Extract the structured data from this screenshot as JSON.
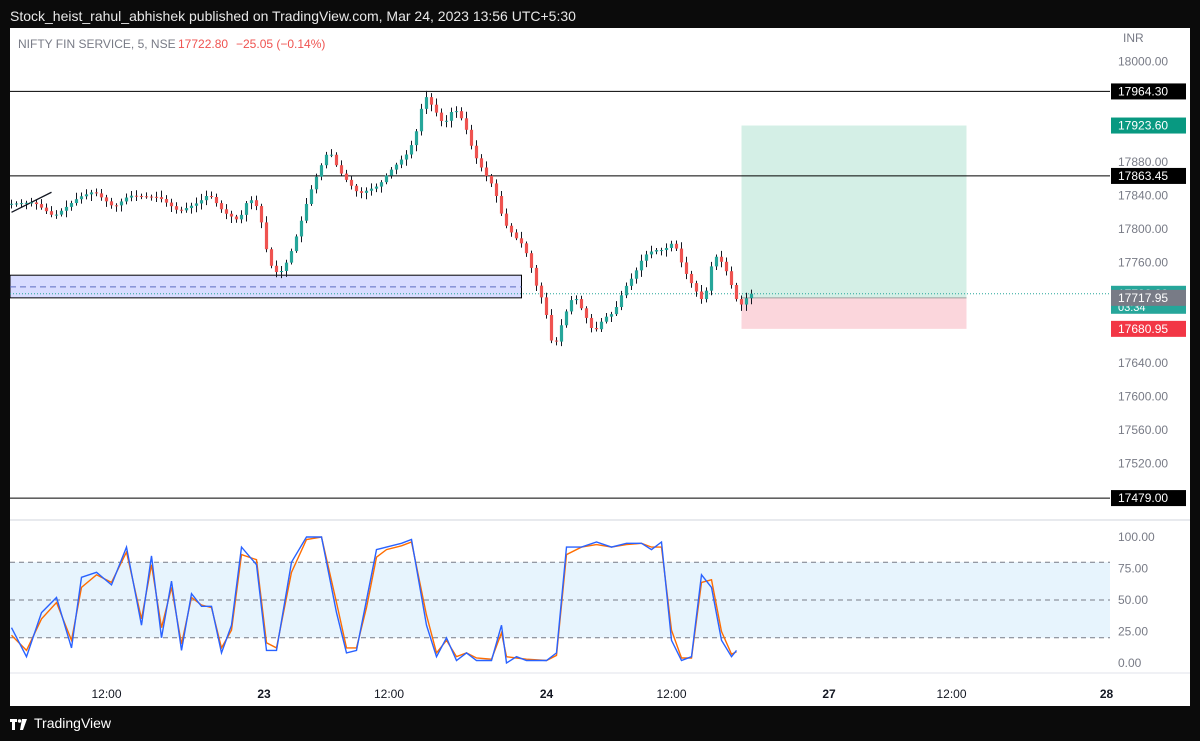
{
  "header": {
    "published_by": "Stock_heist_rahul_abhishek published on TradingView.com, Mar 24, 2023 13:56 UTC+5:30"
  },
  "legend": {
    "symbol": "NIFTY FIN SERVICE, 5, NSE",
    "last_price": "17722.80",
    "change": "−25.05 (−0.14%)"
  },
  "footer": {
    "brand": "TradingView"
  },
  "colors": {
    "up": "#26a69a",
    "down": "#ef5350",
    "k_line": "#2962ff",
    "d_line": "#ff6d00",
    "target_zone": "#d4efe6",
    "stop_zone": "#fbd6dc",
    "support_zone": "#d8dcff"
  },
  "chart_data": [
    {
      "type": "candlestick",
      "currency_label": "INR",
      "ylim": [
        17460,
        18040
      ],
      "y_ticks": [
        "18000.00",
        "17880.00",
        "17840.00",
        "17800.00",
        "17760.00",
        "17640.00",
        "17600.00",
        "17560.00",
        "17520.00"
      ],
      "x_ticks": [
        "12:00",
        "23",
        "12:00",
        "24",
        "12:00",
        "27",
        "12:00",
        "28"
      ],
      "horizontal_levels": [
        "17964.30",
        "17863.45",
        "17479.00"
      ],
      "price_labels": [
        {
          "value": "17964.30",
          "color": "#000000"
        },
        {
          "value": "17923.60",
          "color": "#089981"
        },
        {
          "value": "17863.45",
          "color": "#000000"
        },
        {
          "value": "17722.80",
          "sub": "03:34",
          "color": "#26a69a"
        },
        {
          "value": "17717.95",
          "color": "#787b86"
        },
        {
          "value": "17680.95",
          "color": "#f23645"
        },
        {
          "value": "17479.00",
          "color": "#000000"
        }
      ],
      "position": {
        "entry": 17717.95,
        "target": 17923.6,
        "stop": 17680.95
      },
      "support_zone": [
        17717.95,
        17745
      ],
      "support_mid": 17731,
      "current_price": 17722.8,
      "trendline": [
        [
          0,
          17820
        ],
        [
          8,
          17844
        ]
      ],
      "series_path": [
        [
          0,
          17830
        ],
        [
          5,
          17832
        ],
        [
          9,
          17815
        ],
        [
          14,
          17838
        ],
        [
          17,
          17845
        ],
        [
          21,
          17826
        ],
        [
          24,
          17840
        ],
        [
          30,
          17838
        ],
        [
          34,
          17821
        ],
        [
          38,
          17832
        ],
        [
          40,
          17842
        ],
        [
          43,
          17820
        ],
        [
          46,
          17810
        ],
        [
          48,
          17838
        ],
        [
          50,
          17824
        ],
        [
          52,
          17760
        ],
        [
          54,
          17745
        ],
        [
          56,
          17765
        ],
        [
          58,
          17800
        ],
        [
          60,
          17840
        ],
        [
          62,
          17870
        ],
        [
          64,
          17895
        ],
        [
          66,
          17870
        ],
        [
          68,
          17855
        ],
        [
          70,
          17842
        ],
        [
          74,
          17852
        ],
        [
          76,
          17868
        ],
        [
          78,
          17880
        ],
        [
          80,
          17892
        ],
        [
          82,
          17925
        ],
        [
          83,
          17962
        ],
        [
          85,
          17944
        ],
        [
          87,
          17924
        ],
        [
          89,
          17945
        ],
        [
          91,
          17928
        ],
        [
          93,
          17890
        ],
        [
          95,
          17868
        ],
        [
          97,
          17850
        ],
        [
          99,
          17808
        ],
        [
          101,
          17792
        ],
        [
          103,
          17780
        ],
        [
          105,
          17745
        ],
        [
          106,
          17720
        ],
        [
          107,
          17717
        ],
        [
          108,
          17678
        ],
        [
          109,
          17656
        ],
        [
          111,
          17695
        ],
        [
          113,
          17722
        ],
        [
          115,
          17700
        ],
        [
          117,
          17676
        ],
        [
          119,
          17694
        ],
        [
          121,
          17700
        ],
        [
          123,
          17728
        ],
        [
          125,
          17745
        ],
        [
          127,
          17768
        ],
        [
          129,
          17775
        ],
        [
          131,
          17775
        ],
        [
          133,
          17785
        ],
        [
          135,
          17752
        ],
        [
          137,
          17730
        ],
        [
          139,
          17712
        ],
        [
          141,
          17770
        ],
        [
          143,
          17758
        ],
        [
          145,
          17725
        ],
        [
          146,
          17708
        ],
        [
          147,
          17712
        ],
        [
          148,
          17723
        ]
      ],
      "stoch_ticks": [
        "100.00",
        "75.00",
        "50.00",
        "25.00",
        "0.00"
      ],
      "stoch_bands": [
        80,
        50,
        20
      ],
      "stoch_k": [
        [
          0,
          28
        ],
        [
          3,
          5
        ],
        [
          6,
          40
        ],
        [
          9,
          52
        ],
        [
          12,
          12
        ],
        [
          14,
          68
        ],
        [
          17,
          72
        ],
        [
          20,
          62
        ],
        [
          23,
          92
        ],
        [
          26,
          30
        ],
        [
          28,
          85
        ],
        [
          30,
          20
        ],
        [
          32,
          65
        ],
        [
          34,
          10
        ],
        [
          36,
          55
        ],
        [
          38,
          45
        ],
        [
          40,
          45
        ],
        [
          42,
          8
        ],
        [
          44,
          30
        ],
        [
          46,
          92
        ],
        [
          49,
          78
        ],
        [
          51,
          10
        ],
        [
          53,
          10
        ],
        [
          56,
          80
        ],
        [
          59,
          100
        ],
        [
          62,
          100
        ],
        [
          65,
          40
        ],
        [
          67,
          8
        ],
        [
          69,
          10
        ],
        [
          71,
          50
        ],
        [
          73,
          90
        ],
        [
          75,
          92
        ],
        [
          78,
          95
        ],
        [
          80,
          98
        ],
        [
          83,
          30
        ],
        [
          85,
          5
        ],
        [
          87,
          20
        ],
        [
          89,
          2
        ],
        [
          91,
          8
        ],
        [
          93,
          2
        ],
        [
          96,
          2
        ],
        [
          98,
          30
        ],
        [
          99,
          0
        ],
        [
          101,
          5
        ],
        [
          103,
          2
        ],
        [
          107,
          2
        ],
        [
          109,
          8
        ],
        [
          111,
          92
        ],
        [
          114,
          92
        ],
        [
          117,
          96
        ],
        [
          120,
          92
        ],
        [
          123,
          95
        ],
        [
          126,
          95
        ],
        [
          128,
          90
        ],
        [
          130,
          96
        ],
        [
          132,
          18
        ],
        [
          134,
          2
        ],
        [
          136,
          5
        ],
        [
          138,
          70
        ],
        [
          140,
          60
        ],
        [
          142,
          18
        ],
        [
          144,
          5
        ],
        [
          145,
          10
        ]
      ],
      "stoch_d": [
        [
          0,
          22
        ],
        [
          3,
          10
        ],
        [
          6,
          35
        ],
        [
          9,
          48
        ],
        [
          12,
          18
        ],
        [
          14,
          60
        ],
        [
          17,
          70
        ],
        [
          20,
          64
        ],
        [
          23,
          88
        ],
        [
          26,
          35
        ],
        [
          28,
          78
        ],
        [
          30,
          28
        ],
        [
          32,
          60
        ],
        [
          34,
          15
        ],
        [
          36,
          52
        ],
        [
          38,
          46
        ],
        [
          40,
          44
        ],
        [
          42,
          12
        ],
        [
          44,
          26
        ],
        [
          46,
          86
        ],
        [
          49,
          82
        ],
        [
          51,
          16
        ],
        [
          53,
          12
        ],
        [
          56,
          72
        ],
        [
          59,
          98
        ],
        [
          62,
          100
        ],
        [
          65,
          48
        ],
        [
          67,
          12
        ],
        [
          69,
          12
        ],
        [
          71,
          44
        ],
        [
          73,
          84
        ],
        [
          75,
          90
        ],
        [
          78,
          93
        ],
        [
          80,
          96
        ],
        [
          83,
          38
        ],
        [
          85,
          8
        ],
        [
          87,
          18
        ],
        [
          89,
          5
        ],
        [
          91,
          8
        ],
        [
          93,
          4
        ],
        [
          96,
          3
        ],
        [
          98,
          24
        ],
        [
          99,
          5
        ],
        [
          101,
          4
        ],
        [
          103,
          3
        ],
        [
          107,
          2
        ],
        [
          109,
          6
        ],
        [
          111,
          86
        ],
        [
          114,
          92
        ],
        [
          117,
          94
        ],
        [
          120,
          92
        ],
        [
          123,
          94
        ],
        [
          126,
          95
        ],
        [
          128,
          92
        ],
        [
          130,
          92
        ],
        [
          132,
          26
        ],
        [
          134,
          4
        ],
        [
          136,
          4
        ],
        [
          138,
          64
        ],
        [
          140,
          66
        ],
        [
          142,
          25
        ],
        [
          144,
          7
        ],
        [
          145,
          9
        ]
      ]
    }
  ]
}
